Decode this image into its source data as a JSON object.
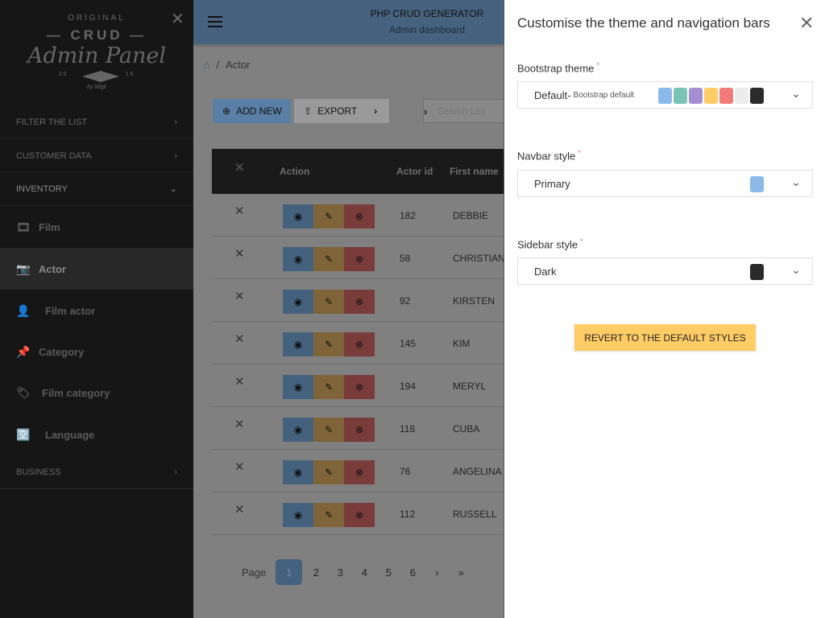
{
  "sidebar": {
    "logo": {
      "line1": "ORIGINAL",
      "line2": "CRUD",
      "line3": "Admin Panel",
      "year_left": "20",
      "year_right": "16",
      "by": "by Migli"
    },
    "sections": [
      {
        "label": "FILTER THE LIST"
      },
      {
        "label": "CUSTOMER DATA"
      },
      {
        "label": "INVENTORY"
      },
      {
        "label": "BUSINESS"
      }
    ],
    "items": [
      {
        "label": "Film",
        "icon": "film-icon"
      },
      {
        "label": "Actor",
        "icon": "camera-icon"
      },
      {
        "label": "Film actor",
        "icon": "user-tag-icon"
      },
      {
        "label": "Category",
        "icon": "pin-icon"
      },
      {
        "label": "Film category",
        "icon": "tags-icon"
      },
      {
        "label": "Language",
        "icon": "language-icon"
      }
    ]
  },
  "navbar": {
    "title": "PHP CRUD GENERATOR",
    "subtitle": "Admin dashboard"
  },
  "breadcrumb": {
    "sep": "/",
    "current": "Actor"
  },
  "toolbar": {
    "add_new": "ADD NEW",
    "export": "EXPORT",
    "search_placeholder": "Search List"
  },
  "table": {
    "headers": {
      "action": "Action",
      "actor_id": "Actor id",
      "first_name": "First name"
    },
    "rows": [
      {
        "id": "182",
        "first_name": "DEBBIE"
      },
      {
        "id": "58",
        "first_name": "CHRISTIAN"
      },
      {
        "id": "92",
        "first_name": "KIRSTEN"
      },
      {
        "id": "145",
        "first_name": "KIM"
      },
      {
        "id": "194",
        "first_name": "MERYL"
      },
      {
        "id": "118",
        "first_name": "CUBA"
      },
      {
        "id": "76",
        "first_name": "ANGELINA"
      },
      {
        "id": "112",
        "first_name": "RUSSELL"
      }
    ]
  },
  "pagination": {
    "label": "Page",
    "pages": [
      "1",
      "2",
      "3",
      "4",
      "5",
      "6"
    ],
    "current": "1"
  },
  "panel": {
    "title": "Customise the theme and navigation bars",
    "bootstrap_theme": {
      "label": "Bootstrap theme",
      "value": "Default-",
      "note": "Bootstrap default",
      "swatches": [
        "#8ab9ea",
        "#7ac4b5",
        "#a58fd0",
        "#ffcc66",
        "#f27a7a",
        "#ececec",
        "#2b2b2b"
      ]
    },
    "navbar_style": {
      "label": "Navbar style",
      "value": "Primary",
      "swatch": "#8ab9ea"
    },
    "sidebar_style": {
      "label": "Sidebar style",
      "value": "Dark",
      "swatch": "#2b2b2b"
    },
    "revert": "REVERT TO THE DEFAULT STYLES"
  }
}
